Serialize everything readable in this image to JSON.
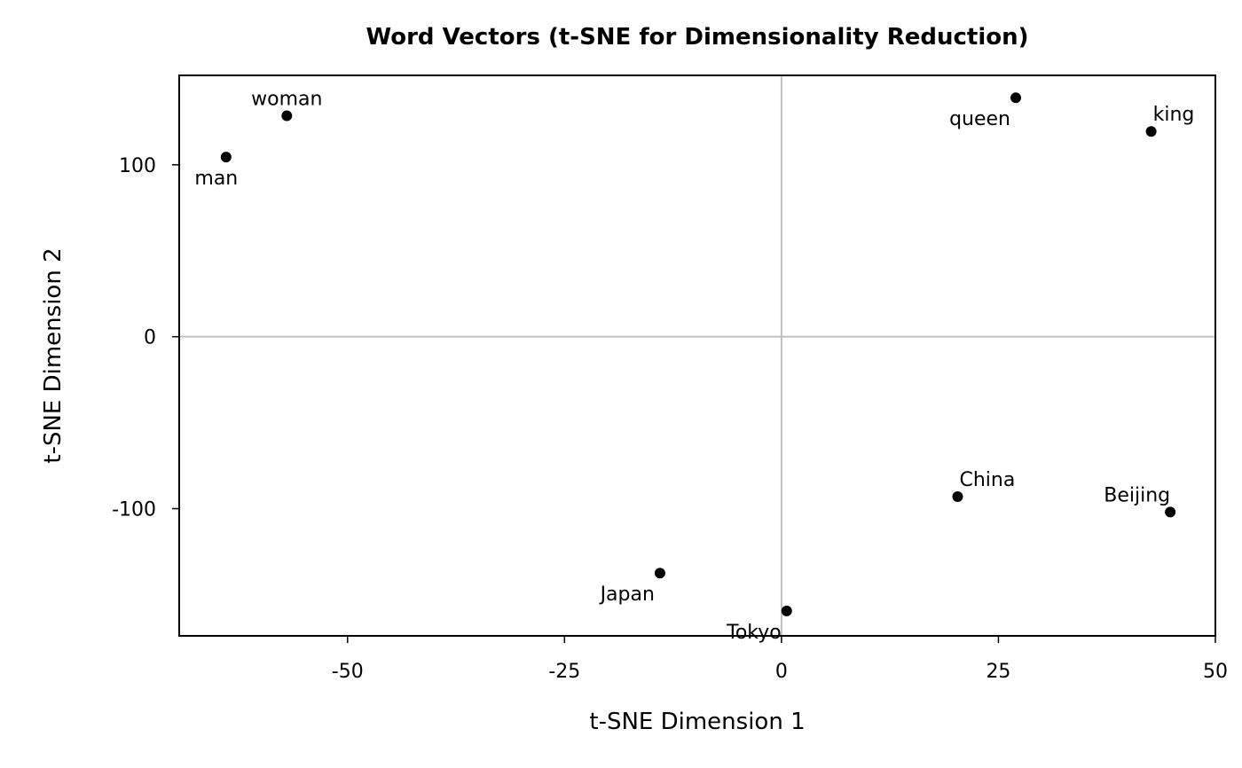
{
  "chart_data": {
    "type": "scatter",
    "title": "Word Vectors (t-SNE for Dimensionality Reduction)",
    "xlabel": "t-SNE Dimension 1",
    "ylabel": "t-SNE Dimension 2",
    "xlim": [
      -69.4,
      50
    ],
    "ylim": [
      -174,
      152
    ],
    "xticks": [
      -50,
      -25,
      0,
      25,
      50
    ],
    "yticks": [
      100,
      0,
      -100
    ],
    "grid": false,
    "reference_lines": {
      "x": 0,
      "y": 0,
      "color": "#c0c0c0"
    },
    "point_color": "#000000",
    "points": [
      {
        "label": "woman",
        "x": -57.0,
        "y": 128.5,
        "label_anchor": "above"
      },
      {
        "label": "man",
        "x": -64.0,
        "y": 104.5,
        "label_anchor": "below"
      },
      {
        "label": "queen",
        "x": 27.0,
        "y": 139.0,
        "label_anchor": "below-left"
      },
      {
        "label": "king",
        "x": 42.6,
        "y": 119.4,
        "label_anchor": "above-right"
      },
      {
        "label": "China",
        "x": 20.3,
        "y": -93.0,
        "label_anchor": "above-right"
      },
      {
        "label": "Beijing",
        "x": 44.8,
        "y": -102.0,
        "label_anchor": "above-left"
      },
      {
        "label": "Japan",
        "x": -14.0,
        "y": -137.5,
        "label_anchor": "below-left"
      },
      {
        "label": "Tokyo",
        "x": 0.6,
        "y": -159.5,
        "label_anchor": "below-left"
      }
    ]
  }
}
